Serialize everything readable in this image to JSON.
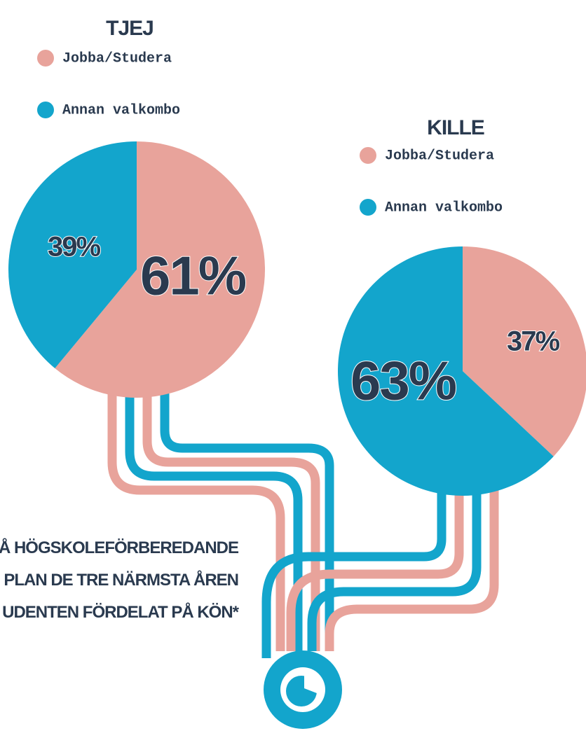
{
  "chart_data": [
    {
      "type": "pie",
      "title": "TJEJ",
      "categories": [
        "Jobba/Studera",
        "Annan valkombo"
      ],
      "values": [
        61,
        39
      ],
      "value_labels": [
        "61%",
        "39%"
      ],
      "colors": [
        "#e8a39b",
        "#13a5cc"
      ]
    },
    {
      "type": "pie",
      "title": "KILLE",
      "categories": [
        "Jobba/Studera",
        "Annan valkombo"
      ],
      "values": [
        37,
        63
      ],
      "value_labels": [
        "37%",
        "63%"
      ],
      "colors": [
        "#e8a39b",
        "#13a5cc"
      ]
    }
  ],
  "caption": [
    "PÅ HÖGSKOLEFÖRBEREDANDE",
    "PLAN DE TRE NÄRMSTA ÅREN",
    "UDENTEN FÖRDELAT PÅ KÖN*"
  ]
}
